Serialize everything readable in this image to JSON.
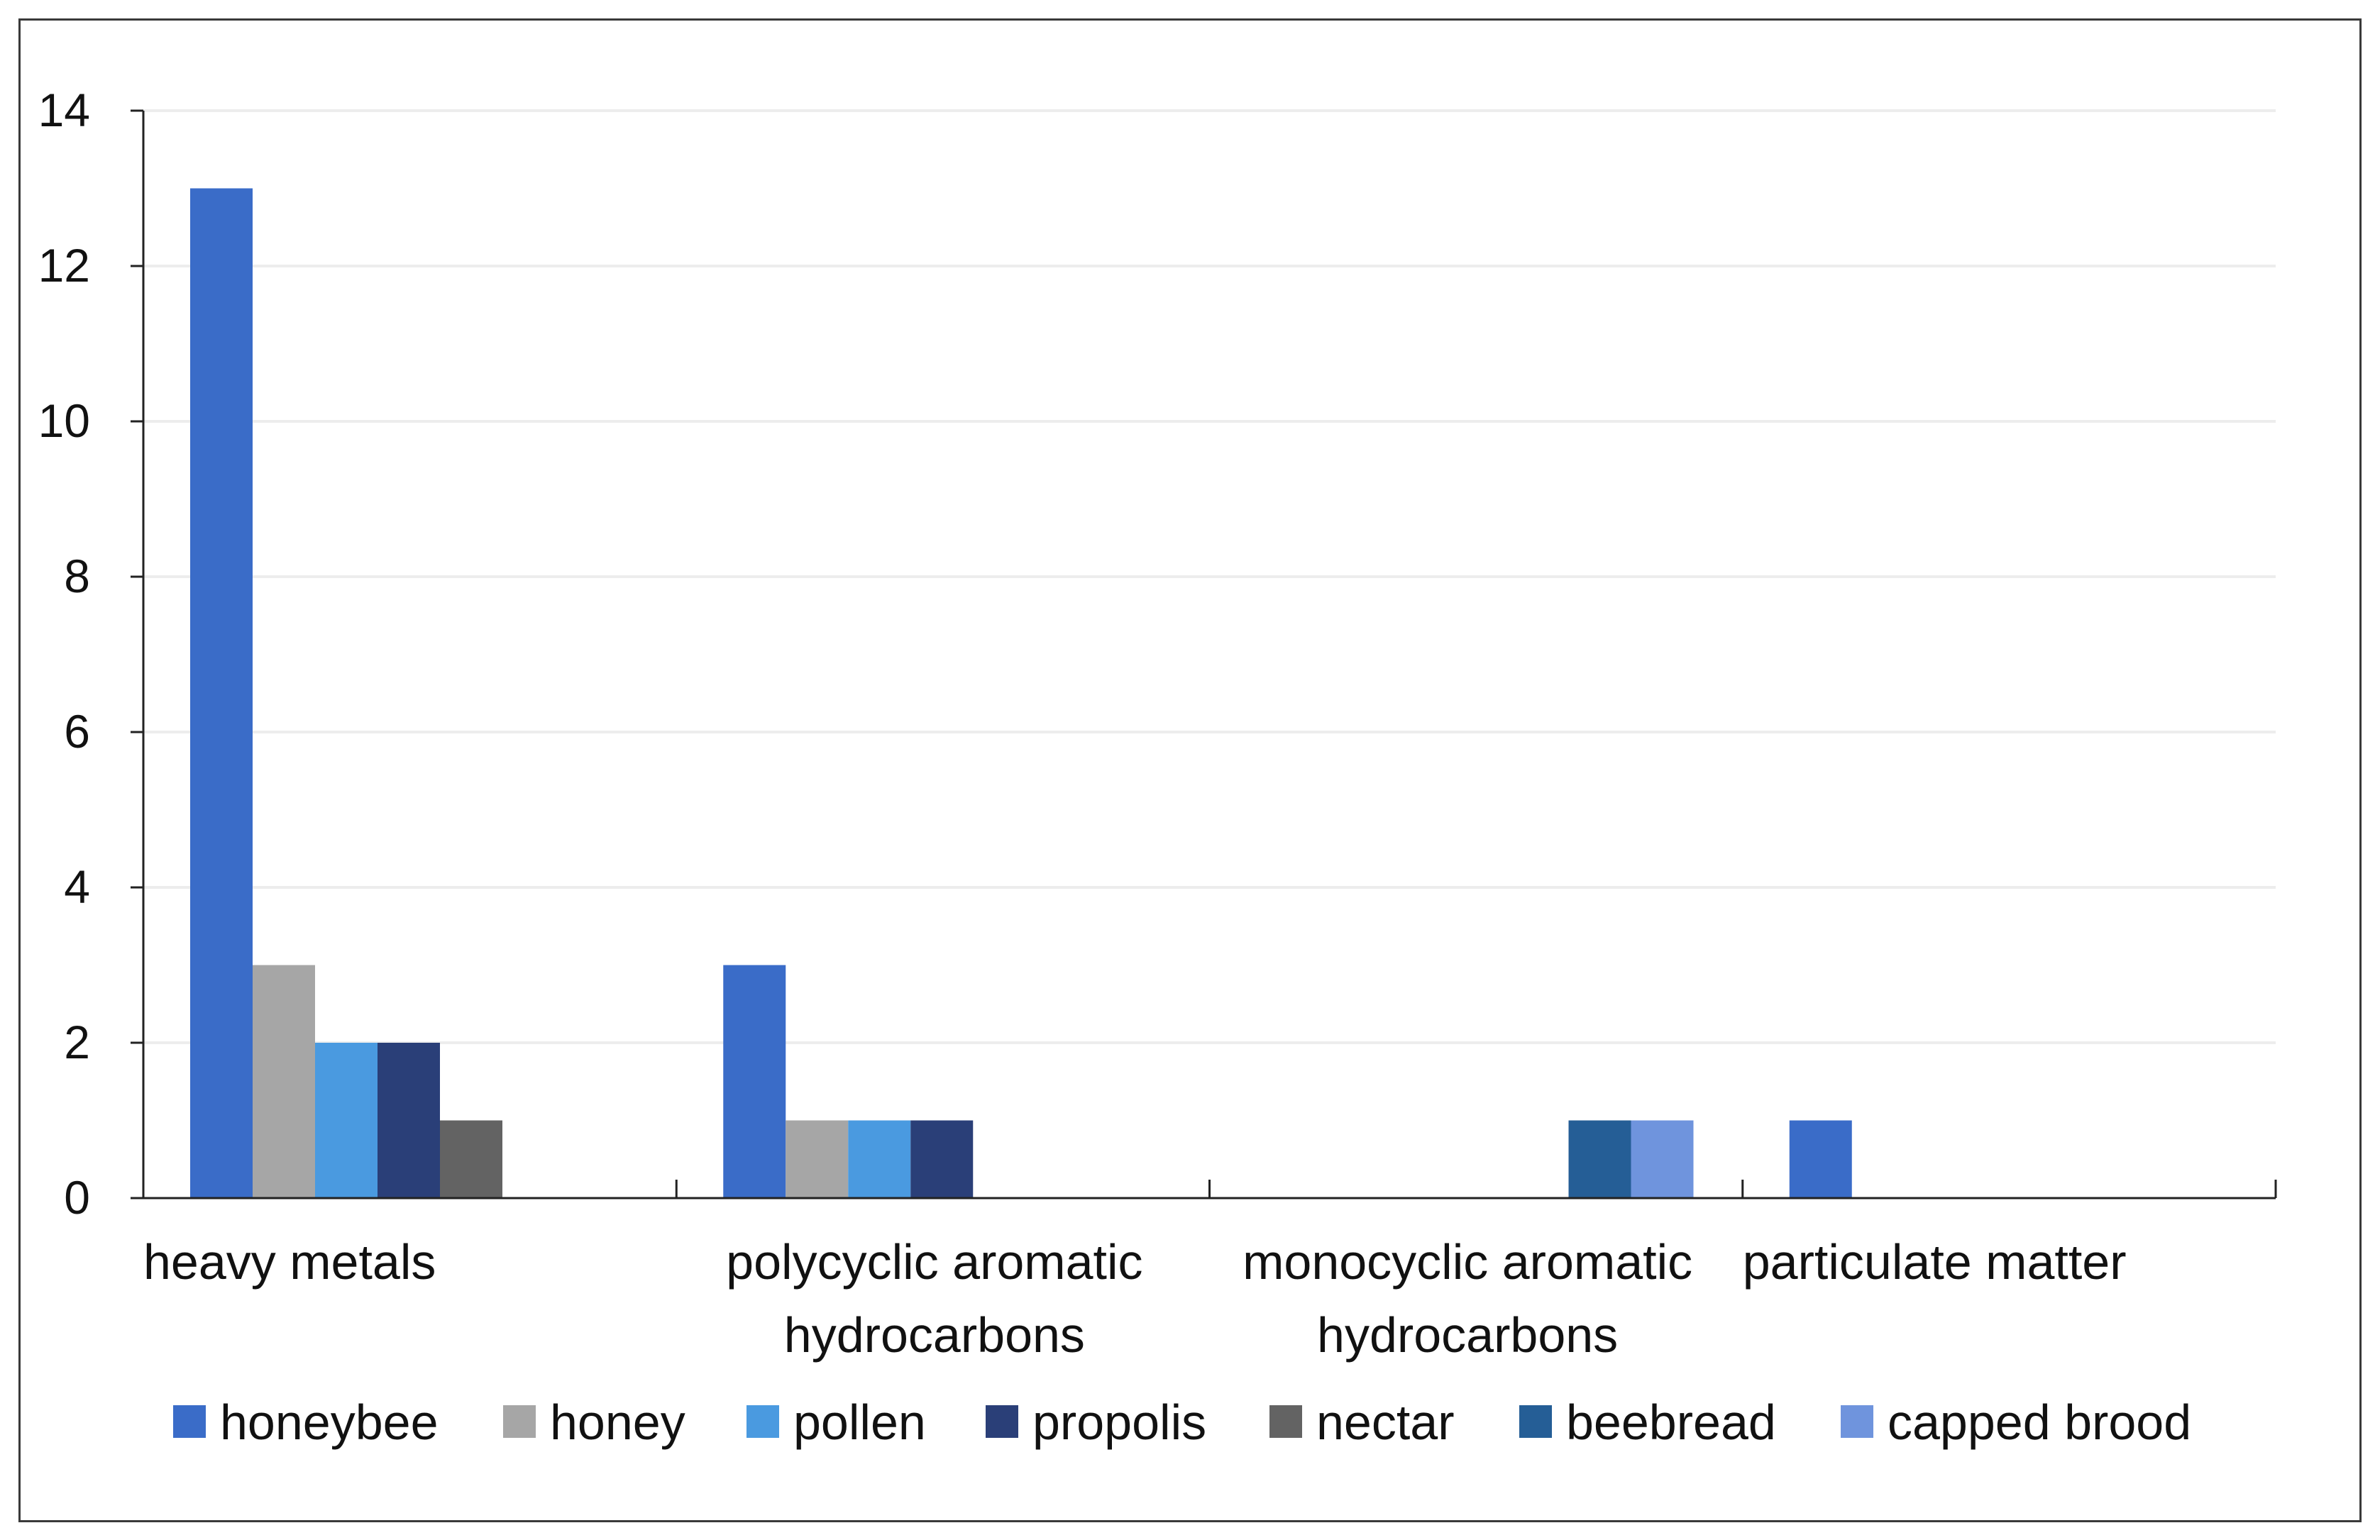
{
  "chart_data": {
    "type": "bar",
    "title": "",
    "xlabel": "",
    "ylabel": "",
    "ylim": [
      0,
      14
    ],
    "yticks": [
      "0",
      "2",
      "4",
      "6",
      "8",
      "10",
      "12",
      "14"
    ],
    "grid": true,
    "legend_position": "bottom",
    "categories": [
      [
        "heavy metals"
      ],
      [
        "polycyclic aromatic",
        "hydrocarbons"
      ],
      [
        "monocyclic aromatic",
        "hydrocarbons"
      ],
      [
        "particulate matter"
      ]
    ],
    "series": [
      {
        "name": "honeybee",
        "color": "#3a6cc8",
        "values": [
          13,
          3,
          0,
          1
        ]
      },
      {
        "name": "honey",
        "color": "#a6a6a6",
        "values": [
          3,
          1,
          0,
          0
        ]
      },
      {
        "name": "pollen",
        "color": "#4a9ae0",
        "values": [
          2,
          1,
          0,
          0
        ]
      },
      {
        "name": "propolis",
        "color": "#2a3f78",
        "values": [
          2,
          1,
          0,
          0
        ]
      },
      {
        "name": "nectar",
        "color": "#636363",
        "values": [
          1,
          0,
          0,
          0
        ]
      },
      {
        "name": "beebread",
        "color": "#255e96",
        "values": [
          0,
          0,
          1,
          0
        ]
      },
      {
        "name": "capped brood",
        "color": "#6f94dd",
        "values": [
          0,
          0,
          1,
          0
        ]
      }
    ]
  }
}
